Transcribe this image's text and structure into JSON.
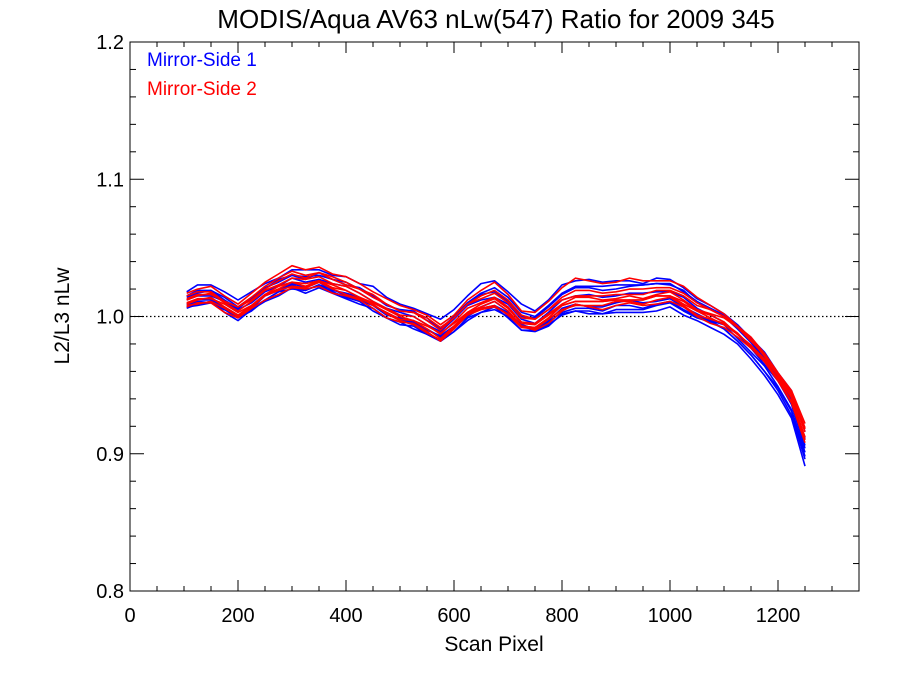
{
  "chart_data": {
    "type": "line",
    "title": "MODIS/Aqua AV63 nLw(547) Ratio for 2009 345",
    "xlabel": "Scan Pixel",
    "ylabel": "L2/L3 nLw",
    "xlim": [
      0,
      1350
    ],
    "ylim": [
      0.8,
      1.2
    ],
    "xticks": [
      0,
      200,
      400,
      600,
      800,
      1000,
      1200
    ],
    "xtick_labels": [
      "0",
      "200",
      "400",
      "600",
      "800",
      "1000",
      "1200"
    ],
    "yticks": [
      0.8,
      0.9,
      1.0,
      1.1,
      1.2
    ],
    "ytick_labels": [
      "0.8",
      "0.9",
      "1.0",
      "1.1",
      "1.2"
    ],
    "reference_line": {
      "y": 1.0,
      "style": "dotted",
      "color": "#000000"
    },
    "legend": {
      "placement": "top-left",
      "entries": [
        {
          "label": "Mirror-Side 1",
          "color": "#0000ff"
        },
        {
          "label": "Mirror-Side 2",
          "color": "#ff0000"
        }
      ]
    },
    "x": [
      105,
      125,
      150,
      175,
      200,
      225,
      250,
      275,
      300,
      325,
      350,
      375,
      400,
      425,
      450,
      475,
      500,
      525,
      550,
      575,
      600,
      625,
      650,
      675,
      700,
      725,
      750,
      775,
      800,
      825,
      850,
      875,
      900,
      925,
      950,
      975,
      1000,
      1025,
      1050,
      1075,
      1100,
      1125,
      1150,
      1175,
      1200,
      1225,
      1250
    ],
    "base_profile": [
      1.011,
      1.013,
      1.014,
      1.008,
      1.003,
      1.009,
      1.016,
      1.021,
      1.025,
      1.023,
      1.026,
      1.022,
      1.019,
      1.015,
      1.01,
      1.004,
      1.0,
      0.998,
      0.993,
      0.987,
      0.995,
      1.004,
      1.009,
      1.012,
      1.006,
      0.996,
      0.994,
      1.0,
      1.008,
      1.012,
      1.011,
      1.01,
      1.012,
      1.013,
      1.012,
      1.014,
      1.015,
      1.01,
      1.004,
      1.0,
      0.996,
      0.988,
      0.979,
      0.968,
      0.955,
      0.94,
      0.916
    ],
    "series": [
      {
        "mirror_side": 1,
        "color": "#0000ff",
        "offsets": [
          0.007,
          0.01,
          0.009,
          0.01,
          0.009,
          0.009,
          0.008,
          0.007,
          0.009,
          0.011,
          0.008,
          0.008,
          0.01,
          0.009,
          0.012,
          0.01,
          0.009,
          0.008,
          0.009,
          0.011,
          0.01,
          0.011,
          0.015,
          0.014,
          0.012,
          0.013,
          0.01,
          0.012,
          0.015,
          0.014,
          0.016,
          0.015,
          0.014,
          0.013,
          0.012,
          0.014,
          0.012,
          0.011,
          0.009,
          0.008,
          0.006,
          0.006,
          0.005,
          0.006,
          0.004,
          0.006,
          0.0
        ]
      },
      {
        "mirror_side": 1,
        "color": "#0000ff",
        "offsets": [
          -0.005,
          -0.004,
          -0.003,
          -0.005,
          -0.006,
          -0.004,
          -0.005,
          -0.006,
          -0.004,
          -0.006,
          -0.005,
          -0.005,
          -0.006,
          -0.006,
          -0.004,
          -0.005,
          -0.004,
          -0.007,
          -0.006,
          -0.005,
          -0.006,
          -0.005,
          -0.006,
          -0.007,
          -0.006,
          -0.006,
          -0.004,
          -0.006,
          -0.007,
          -0.008,
          -0.009,
          -0.008,
          -0.009,
          -0.01,
          -0.009,
          -0.01,
          -0.008,
          -0.009,
          -0.007,
          -0.008,
          -0.009,
          -0.008,
          -0.01,
          -0.011,
          -0.012,
          -0.014,
          -0.025
        ]
      },
      {
        "mirror_side": 1,
        "color": "#0000ff",
        "offsets": [
          0.004,
          0.006,
          0.005,
          0.006,
          0.004,
          0.005,
          0.004,
          0.006,
          0.005,
          0.004,
          0.006,
          0.005,
          0.004,
          0.006,
          0.005,
          0.004,
          0.005,
          0.006,
          0.004,
          0.005,
          0.004,
          0.006,
          0.007,
          0.006,
          0.005,
          0.004,
          0.005,
          0.007,
          0.008,
          0.009,
          0.01,
          0.009,
          0.008,
          0.009,
          0.011,
          0.01,
          0.008,
          0.009,
          0.006,
          0.005,
          0.004,
          0.003,
          0.002,
          0.001,
          -0.001,
          -0.004,
          -0.01
        ]
      },
      {
        "mirror_side": 1,
        "color": "#0000ff",
        "offsets": [
          -0.002,
          -0.001,
          -0.002,
          -0.001,
          -0.002,
          -0.003,
          -0.001,
          -0.002,
          -0.001,
          -0.002,
          -0.001,
          -0.003,
          -0.002,
          -0.001,
          -0.002,
          -0.001,
          -0.002,
          -0.003,
          -0.002,
          -0.002,
          -0.003,
          -0.004,
          -0.003,
          -0.004,
          -0.003,
          -0.002,
          -0.003,
          -0.004,
          -0.005,
          -0.006,
          -0.005,
          -0.006,
          -0.004,
          -0.005,
          -0.006,
          -0.005,
          -0.004,
          -0.005,
          -0.004,
          -0.003,
          -0.005,
          -0.006,
          -0.007,
          -0.008,
          -0.007,
          -0.009,
          -0.018
        ]
      },
      {
        "mirror_side": 1,
        "color": "#0000ff",
        "offsets": [
          0.001,
          0.002,
          0.001,
          0.003,
          0.002,
          0.001,
          0.002,
          0.001,
          0.003,
          0.002,
          0.001,
          0.002,
          0.003,
          0.002,
          0.001,
          0.002,
          0.003,
          0.002,
          0.001,
          0.002,
          0.003,
          0.004,
          0.003,
          0.002,
          0.003,
          0.002,
          0.001,
          0.003,
          0.004,
          0.003,
          0.005,
          0.004,
          0.003,
          0.004,
          0.005,
          0.004,
          0.003,
          0.004,
          0.002,
          0.001,
          0.0,
          -0.001,
          -0.002,
          -0.003,
          -0.002,
          -0.004,
          -0.012
        ]
      },
      {
        "mirror_side": 1,
        "color": "#0000ff",
        "offsets": [
          -0.003,
          -0.002,
          -0.004,
          -0.003,
          -0.002,
          -0.003,
          -0.004,
          -0.003,
          -0.002,
          -0.004,
          -0.003,
          -0.002,
          -0.004,
          -0.003,
          -0.002,
          -0.003,
          -0.001,
          -0.002,
          -0.003,
          -0.001,
          -0.002,
          -0.003,
          -0.002,
          -0.001,
          -0.002,
          -0.003,
          -0.002,
          -0.003,
          -0.002,
          -0.003,
          -0.004,
          -0.003,
          -0.002,
          -0.001,
          -0.002,
          -0.003,
          -0.002,
          -0.003,
          -0.002,
          -0.003,
          -0.002,
          -0.004,
          -0.005,
          -0.004,
          -0.006,
          -0.008,
          -0.015
        ]
      },
      {
        "mirror_side": 1,
        "color": "#0000ff",
        "offsets": [
          0.003,
          0.004,
          0.005,
          0.004,
          0.003,
          0.004,
          0.005,
          0.004,
          0.005,
          0.006,
          0.004,
          0.005,
          0.006,
          0.005,
          0.004,
          0.005,
          0.004,
          0.005,
          0.006,
          0.004,
          0.005,
          0.006,
          0.008,
          0.009,
          0.008,
          0.007,
          0.006,
          0.008,
          0.009,
          0.01,
          0.011,
          0.012,
          0.011,
          0.01,
          0.011,
          0.01,
          0.009,
          0.008,
          0.007,
          0.006,
          0.005,
          0.004,
          0.003,
          0.002,
          0.001,
          -0.001,
          -0.005
        ]
      },
      {
        "mirror_side": 1,
        "color": "#0000ff",
        "offsets": [
          -0.004,
          -0.005,
          -0.004,
          -0.003,
          -0.004,
          -0.005,
          -0.004,
          -0.003,
          -0.005,
          -0.004,
          -0.003,
          -0.004,
          -0.005,
          -0.004,
          -0.006,
          -0.005,
          -0.006,
          -0.005,
          -0.006,
          -0.005,
          -0.006,
          -0.007,
          -0.006,
          -0.005,
          -0.007,
          -0.006,
          -0.005,
          -0.007,
          -0.006,
          -0.008,
          -0.007,
          -0.008,
          -0.007,
          -0.008,
          -0.007,
          -0.006,
          -0.005,
          -0.006,
          -0.005,
          -0.004,
          -0.005,
          -0.006,
          -0.007,
          -0.008,
          -0.009,
          -0.012,
          -0.02
        ]
      },
      {
        "mirror_side": 2,
        "color": "#ff0000",
        "offsets": [
          0.002,
          0.003,
          0.002,
          0.003,
          0.004,
          0.003,
          0.004,
          0.005,
          0.006,
          0.005,
          0.006,
          0.005,
          0.004,
          0.005,
          0.004,
          0.005,
          0.004,
          0.005,
          0.006,
          0.005,
          0.004,
          0.005,
          0.004,
          0.005,
          0.004,
          0.003,
          0.004,
          0.005,
          0.004,
          0.003,
          0.004,
          0.005,
          0.004,
          0.003,
          0.004,
          0.005,
          0.004,
          0.005,
          0.004,
          0.005,
          0.004,
          0.005,
          0.004,
          0.003,
          0.002,
          0.001,
          -0.004
        ]
      },
      {
        "mirror_side": 2,
        "color": "#ff0000",
        "offsets": [
          -0.001,
          0.0,
          -0.001,
          0.001,
          0.0,
          -0.001,
          0.0,
          0.001,
          0.0,
          -0.001,
          0.0,
          0.001,
          0.0,
          -0.001,
          0.0,
          0.001,
          0.0,
          -0.001,
          0.0,
          0.001,
          0.0,
          -0.001,
          0.0,
          0.001,
          0.0,
          -0.001,
          0.0,
          0.001,
          0.0,
          -0.001,
          0.0,
          0.001,
          0.0,
          -0.001,
          0.0,
          0.001,
          0.0,
          -0.001,
          0.0,
          0.001,
          0.0,
          -0.001,
          0.0,
          0.001,
          0.002,
          0.003,
          0.0
        ]
      },
      {
        "mirror_side": 2,
        "color": "#ff0000",
        "offsets": [
          0.006,
          0.007,
          0.008,
          0.007,
          0.006,
          0.008,
          0.009,
          0.01,
          0.012,
          0.011,
          0.01,
          0.009,
          0.01,
          0.009,
          0.008,
          0.009,
          0.008,
          0.007,
          0.008,
          0.007,
          0.006,
          0.008,
          0.01,
          0.013,
          0.01,
          0.008,
          0.009,
          0.011,
          0.013,
          0.016,
          0.015,
          0.014,
          0.013,
          0.015,
          0.014,
          0.012,
          0.011,
          0.012,
          0.01,
          0.008,
          0.006,
          0.005,
          0.006,
          0.005,
          0.004,
          0.006,
          0.006
        ]
      },
      {
        "mirror_side": 2,
        "color": "#ff0000",
        "offsets": [
          -0.004,
          -0.003,
          -0.004,
          -0.005,
          -0.004,
          -0.003,
          -0.004,
          -0.005,
          -0.004,
          -0.003,
          -0.004,
          -0.005,
          -0.004,
          -0.003,
          -0.004,
          -0.005,
          -0.004,
          -0.003,
          -0.004,
          -0.005,
          -0.004,
          -0.003,
          -0.004,
          -0.005,
          -0.004,
          -0.003,
          -0.004,
          -0.005,
          -0.004,
          -0.003,
          -0.004,
          -0.005,
          -0.004,
          -0.003,
          -0.004,
          -0.005,
          -0.004,
          -0.003,
          -0.004,
          -0.005,
          -0.004,
          -0.003,
          -0.002,
          -0.001,
          0.0,
          0.001,
          -0.006
        ]
      },
      {
        "mirror_side": 2,
        "color": "#ff0000",
        "offsets": [
          0.001,
          0.002,
          0.003,
          0.002,
          0.001,
          0.002,
          0.003,
          0.002,
          0.003,
          0.004,
          0.003,
          0.002,
          0.003,
          0.002,
          0.001,
          0.002,
          0.001,
          0.002,
          0.001,
          0.0,
          0.001,
          0.002,
          0.001,
          0.002,
          0.001,
          0.0,
          0.001,
          0.002,
          0.001,
          0.002,
          0.003,
          0.002,
          0.001,
          0.002,
          0.001,
          0.002,
          0.003,
          0.002,
          0.001,
          0.002,
          0.003,
          0.004,
          0.003,
          0.004,
          0.003,
          0.004,
          0.003
        ]
      },
      {
        "mirror_side": 2,
        "color": "#ff0000",
        "offsets": [
          -0.002,
          -0.001,
          0.0,
          -0.001,
          -0.002,
          -0.001,
          0.0,
          -0.001,
          0.0,
          0.001,
          0.0,
          -0.001,
          0.0,
          -0.001,
          -0.002,
          -0.001,
          -0.002,
          -0.001,
          -0.002,
          -0.003,
          -0.002,
          -0.001,
          -0.002,
          -0.001,
          -0.002,
          -0.003,
          -0.002,
          -0.001,
          0.0,
          -0.001,
          0.0,
          0.001,
          0.0,
          -0.001,
          0.0,
          0.001,
          0.0,
          0.001,
          0.0,
          -0.001,
          -0.002,
          -0.001,
          0.0,
          -0.001,
          -0.002,
          -0.003,
          -0.008
        ]
      },
      {
        "mirror_side": 2,
        "color": "#ff0000",
        "offsets": [
          0.004,
          0.005,
          0.004,
          0.003,
          0.004,
          0.005,
          0.006,
          0.007,
          0.008,
          0.007,
          0.006,
          0.007,
          0.006,
          0.005,
          0.006,
          0.005,
          0.004,
          0.005,
          0.004,
          0.003,
          0.004,
          0.005,
          0.006,
          0.007,
          0.006,
          0.005,
          0.004,
          0.005,
          0.006,
          0.007,
          0.008,
          0.007,
          0.006,
          0.007,
          0.008,
          0.007,
          0.006,
          0.007,
          0.006,
          0.005,
          0.004,
          0.005,
          0.004,
          0.005,
          0.004,
          0.005,
          0.002
        ]
      },
      {
        "mirror_side": 2,
        "color": "#ff0000",
        "offsets": [
          -0.003,
          -0.004,
          -0.003,
          -0.002,
          -0.003,
          -0.002,
          -0.001,
          -0.002,
          -0.003,
          -0.002,
          -0.001,
          -0.002,
          -0.003,
          -0.002,
          -0.001,
          -0.002,
          -0.003,
          -0.004,
          -0.005,
          -0.004,
          -0.003,
          -0.002,
          -0.003,
          -0.004,
          -0.005,
          -0.004,
          -0.003,
          -0.002,
          -0.003,
          -0.004,
          -0.003,
          -0.002,
          -0.001,
          -0.002,
          -0.003,
          -0.002,
          -0.001,
          -0.002,
          -0.003,
          -0.002,
          -0.001,
          0.0,
          -0.001,
          0.0,
          -0.001,
          -0.002,
          -0.004
        ]
      }
    ]
  }
}
